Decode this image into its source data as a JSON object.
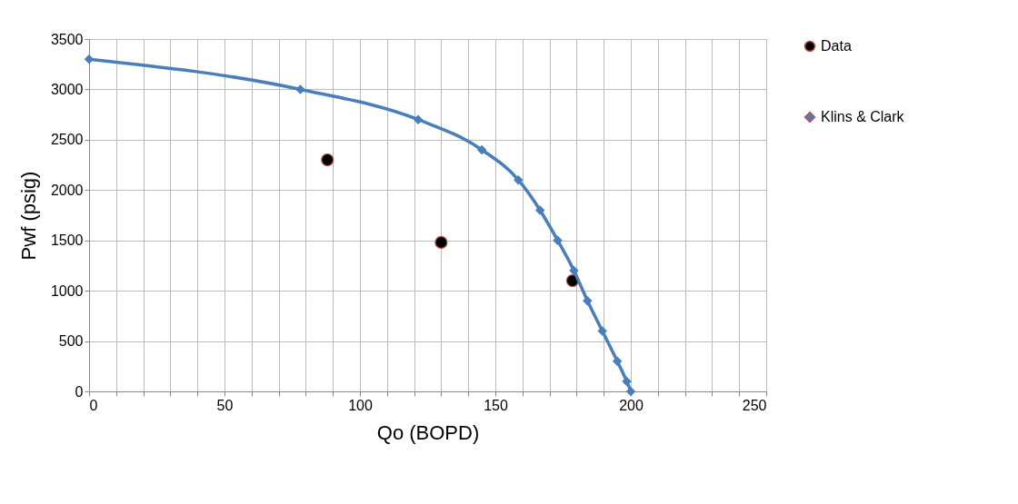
{
  "chart_data": {
    "type": "line",
    "xlabel": "Qo (BOPD)",
    "ylabel": "Pwf (psig)",
    "xlim": [
      0,
      250
    ],
    "ylim": [
      0,
      3500
    ],
    "xticks": [
      0,
      {
        "value": 10,
        "label": null
      },
      {
        "value": 20,
        "label": null
      },
      {
        "value": 30,
        "label": null
      },
      {
        "value": 40,
        "label": null
      },
      50,
      {
        "value": 60,
        "label": null
      },
      {
        "value": 70,
        "label": null
      },
      {
        "value": 80,
        "label": null
      },
      {
        "value": 90,
        "label": null
      },
      100,
      {
        "value": 110,
        "label": null
      },
      {
        "value": 120,
        "label": null
      },
      {
        "value": 130,
        "label": null
      },
      {
        "value": 140,
        "label": null
      },
      150,
      {
        "value": 160,
        "label": null
      },
      {
        "value": 170,
        "label": null
      },
      {
        "value": 180,
        "label": null
      },
      {
        "value": 190,
        "label": null
      },
      200,
      {
        "value": 210,
        "label": null
      },
      {
        "value": 220,
        "label": null
      },
      {
        "value": 230,
        "label": null
      },
      {
        "value": 240,
        "label": null
      },
      250
    ],
    "yticks": [
      0,
      500,
      1000,
      1500,
      2000,
      2500,
      3000,
      3500
    ],
    "grid": true,
    "legend": "right",
    "series": [
      {
        "name": "Data",
        "type": "scatter",
        "marker": "circle",
        "color": "#000000",
        "x": [
          88,
          130,
          178.5
        ],
        "values": [
          2300,
          1480,
          1100
        ]
      },
      {
        "name": "Klins & Clark",
        "marker": "diamond",
        "color": "#4a7ebb",
        "x": [
          0,
          78,
          121.5,
          145,
          158.5,
          166.5,
          173,
          179,
          184,
          189.5,
          195,
          198.5,
          200
        ],
        "values": [
          3300,
          3000,
          2700,
          2400,
          2100,
          1800,
          1500,
          1200,
          900,
          600,
          300,
          100,
          0
        ]
      }
    ]
  }
}
